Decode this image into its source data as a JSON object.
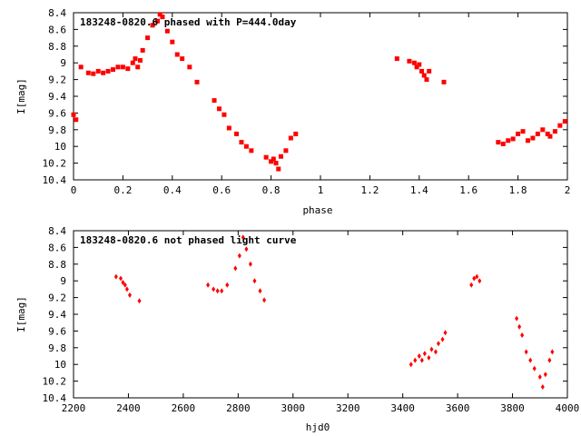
{
  "colors": {
    "marker": "#ff0000",
    "axis": "#000000",
    "background": "#ffffff"
  },
  "chart_data": [
    {
      "type": "scatter",
      "title": "183248-0820.6 phased with P=444.0day",
      "xlabel": "phase",
      "ylabel": "I[mag]",
      "xlim": [
        0,
        2
      ],
      "ylim": [
        8.4,
        10.4
      ],
      "y_inverted": true,
      "grid": false,
      "legend": "none",
      "x_ticks": [
        0,
        0.2,
        0.4,
        0.6,
        0.8,
        1,
        1.2,
        1.4,
        1.6,
        1.8,
        2
      ],
      "x_tick_labels": [
        "0",
        "0.2",
        "0.4",
        "0.6",
        "0.8",
        "1",
        "1.2",
        "1.4",
        "1.6",
        "1.8",
        "2"
      ],
      "y_ticks": [
        8.4,
        8.6,
        8.8,
        9,
        9.2,
        9.4,
        9.6,
        9.8,
        10,
        10.2,
        10.4
      ],
      "y_tick_labels": [
        "8.4",
        "8.6",
        "8.8",
        "9",
        "9.2",
        "9.4",
        "9.6",
        "9.8",
        "10",
        "10.2",
        "10.4"
      ],
      "x": [
        0.0,
        0.01,
        0.03,
        0.06,
        0.08,
        0.1,
        0.12,
        0.14,
        0.16,
        0.18,
        0.2,
        0.22,
        0.24,
        0.25,
        0.26,
        0.27,
        0.28,
        0.3,
        0.32,
        0.34,
        0.35,
        0.36,
        0.38,
        0.4,
        0.42,
        0.44,
        0.47,
        0.5,
        0.57,
        0.59,
        0.61,
        0.63,
        0.66,
        0.68,
        0.7,
        0.72,
        0.78,
        0.8,
        0.81,
        0.82,
        0.83,
        0.84,
        0.86,
        0.88,
        0.9,
        1.31,
        1.36,
        1.38,
        1.39,
        1.4,
        1.41,
        1.42,
        1.43,
        1.44,
        1.5,
        1.72,
        1.74,
        1.76,
        1.78,
        1.8,
        1.82,
        1.84,
        1.86,
        1.88,
        1.9,
        1.92,
        1.93,
        1.95,
        1.97,
        1.99
      ],
      "y": [
        9.62,
        9.68,
        9.05,
        9.12,
        9.13,
        9.1,
        9.12,
        9.1,
        9.08,
        9.05,
        9.05,
        9.07,
        9.0,
        8.95,
        9.05,
        8.97,
        8.85,
        8.7,
        8.55,
        8.5,
        8.42,
        8.45,
        8.62,
        8.75,
        8.9,
        8.95,
        9.05,
        9.23,
        9.45,
        9.55,
        9.62,
        9.78,
        9.85,
        9.95,
        10.0,
        10.05,
        10.13,
        10.18,
        10.15,
        10.2,
        10.27,
        10.12,
        10.05,
        9.9,
        9.85,
        8.95,
        8.98,
        9.0,
        9.05,
        9.02,
        9.1,
        9.15,
        9.2,
        9.1,
        9.23,
        9.95,
        9.97,
        9.93,
        9.91,
        9.85,
        9.82,
        9.93,
        9.9,
        9.85,
        9.8,
        9.85,
        9.88,
        9.82,
        9.75,
        9.7
      ]
    },
    {
      "type": "scatter",
      "title": "183248-0820.6 not phased light curve",
      "xlabel": "hjd0",
      "ylabel": "I[mag]",
      "xlim": [
        2200,
        4000
      ],
      "ylim": [
        8.4,
        10.4
      ],
      "y_inverted": true,
      "grid": false,
      "legend": "none",
      "x_ticks": [
        2200,
        2400,
        2600,
        2800,
        3000,
        3200,
        3400,
        3600,
        3800,
        4000
      ],
      "x_tick_labels": [
        "2200",
        "2400",
        "2600",
        "2800",
        "3000",
        "3200",
        "3400",
        "3600",
        "3800",
        "4000"
      ],
      "y_ticks": [
        8.4,
        8.6,
        8.8,
        9,
        9.2,
        9.4,
        9.6,
        9.8,
        10,
        10.2,
        10.4
      ],
      "y_tick_labels": [
        "8.4",
        "8.6",
        "8.8",
        "9",
        "9.2",
        "9.4",
        "9.6",
        "9.8",
        "10",
        "10.2",
        "10.4"
      ],
      "x": [
        2355,
        2372,
        2380,
        2388,
        2395,
        2405,
        2440,
        2690,
        2710,
        2725,
        2740,
        2760,
        2790,
        2805,
        2818,
        2830,
        2845,
        2860,
        2880,
        2895,
        3430,
        3445,
        3460,
        3470,
        3480,
        3495,
        3505,
        3520,
        3530,
        3545,
        3555,
        3650,
        3660,
        3670,
        3680,
        3815,
        3825,
        3835,
        3850,
        3865,
        3880,
        3900,
        3910,
        3920,
        3935,
        3945
      ],
      "y": [
        8.95,
        8.97,
        9.02,
        9.05,
        9.1,
        9.17,
        9.24,
        9.05,
        9.1,
        9.12,
        9.12,
        9.05,
        8.85,
        8.7,
        8.48,
        8.62,
        8.8,
        9.0,
        9.12,
        9.23,
        10.0,
        9.95,
        9.9,
        9.95,
        9.87,
        9.92,
        9.82,
        9.85,
        9.75,
        9.7,
        9.62,
        9.05,
        8.97,
        8.95,
        9.0,
        9.45,
        9.55,
        9.65,
        9.85,
        9.95,
        10.05,
        10.15,
        10.27,
        10.12,
        9.95,
        9.85
      ]
    }
  ]
}
